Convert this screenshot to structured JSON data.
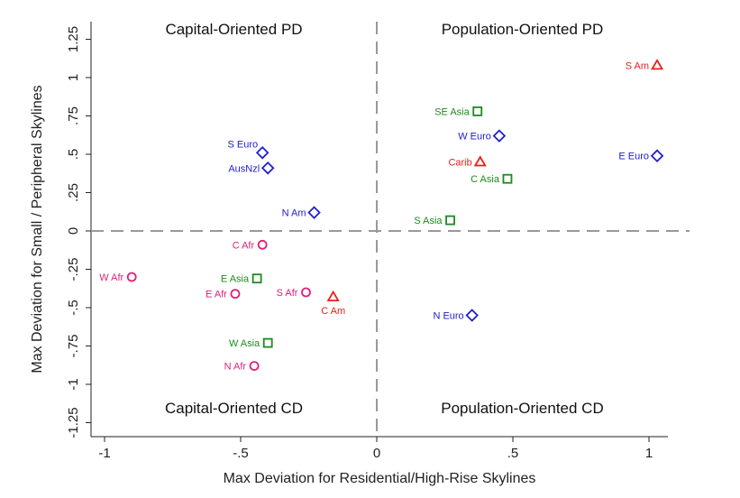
{
  "chart_data": {
    "type": "scatter",
    "title": "",
    "xlabel": "Max Deviation for Residential/High-Rise Skylines",
    "ylabel": "Max Deviation for Small / Peripheral Skylines",
    "xlim": [
      -1.04,
      1.1
    ],
    "ylim": [
      -1.35,
      1.37
    ],
    "x_ticks": [
      {
        "value": -1,
        "label": "-1"
      },
      {
        "value": -0.5,
        "label": "-.5"
      },
      {
        "value": 0,
        "label": "0"
      },
      {
        "value": 0.5,
        "label": ".5"
      },
      {
        "value": 1,
        "label": "1"
      }
    ],
    "y_ticks": [
      {
        "value": 1.25,
        "label": "1.25"
      },
      {
        "value": 1,
        "label": "1"
      },
      {
        "value": 0.75,
        "label": ".75"
      },
      {
        "value": 0.5,
        "label": ".5"
      },
      {
        "value": 0.25,
        "label": ".25"
      },
      {
        "value": 0,
        "label": "0"
      },
      {
        "value": -0.25,
        "label": "-.25"
      },
      {
        "value": -0.5,
        "label": "-.5"
      },
      {
        "value": -0.75,
        "label": "-.75"
      },
      {
        "value": -1,
        "label": "-1"
      },
      {
        "value": -1.25,
        "label": "-1.25"
      }
    ],
    "grid": false,
    "reference_lines": {
      "x": 0,
      "y": 0,
      "style": "dashed",
      "color": "#999999"
    },
    "quadrant_labels": {
      "top_left": "Capital-Oriented PD",
      "top_right": "Population-Oriented PD",
      "bottom_left": "Capital-Oriented CD",
      "bottom_right": "Population-Oriented CD"
    },
    "series": [
      {
        "marker": "triangle",
        "color": "#e8201a",
        "points": [
          {
            "label": "S Am",
            "x": 1.03,
            "y": 1.08,
            "label_side": "left"
          },
          {
            "label": "Carib",
            "x": 0.38,
            "y": 0.45,
            "label_side": "left"
          },
          {
            "label": "C Am",
            "x": -0.16,
            "y": -0.43,
            "label_side": "below"
          }
        ]
      },
      {
        "marker": "square",
        "color": "#1e8a1e",
        "points": [
          {
            "label": "SE Asia",
            "x": 0.37,
            "y": 0.78,
            "label_side": "left"
          },
          {
            "label": "C Asia",
            "x": 0.48,
            "y": 0.34,
            "label_side": "left"
          },
          {
            "label": "S Asia",
            "x": 0.27,
            "y": 0.07,
            "label_side": "left"
          },
          {
            "label": "E Asia",
            "x": -0.44,
            "y": -0.31,
            "label_side": "left"
          },
          {
            "label": "W Asia",
            "x": -0.4,
            "y": -0.73,
            "label_side": "left"
          }
        ]
      },
      {
        "marker": "diamond",
        "color": "#2020cc",
        "points": [
          {
            "label": "E Euro",
            "x": 1.03,
            "y": 0.49,
            "label_side": "left"
          },
          {
            "label": "W Euro",
            "x": 0.45,
            "y": 0.62,
            "label_side": "left"
          },
          {
            "label": "S Euro",
            "x": -0.42,
            "y": 0.51,
            "label_side": "upper-left"
          },
          {
            "label": "AusNzl",
            "x": -0.4,
            "y": 0.41,
            "label_side": "left"
          },
          {
            "label": "N Am",
            "x": -0.23,
            "y": 0.12,
            "label_side": "left"
          },
          {
            "label": "N Euro",
            "x": 0.35,
            "y": -0.55,
            "label_side": "left"
          }
        ]
      },
      {
        "marker": "circle",
        "color": "#e0207a",
        "points": [
          {
            "label": "C Afr",
            "x": -0.42,
            "y": -0.09,
            "label_side": "left"
          },
          {
            "label": "W Afr",
            "x": -0.9,
            "y": -0.3,
            "label_side": "left"
          },
          {
            "label": "E Afr",
            "x": -0.52,
            "y": -0.41,
            "label_side": "left"
          },
          {
            "label": "S Afr",
            "x": -0.26,
            "y": -0.4,
            "label_side": "left"
          },
          {
            "label": "N Afr",
            "x": -0.45,
            "y": -0.88,
            "label_side": "left"
          }
        ]
      }
    ]
  }
}
